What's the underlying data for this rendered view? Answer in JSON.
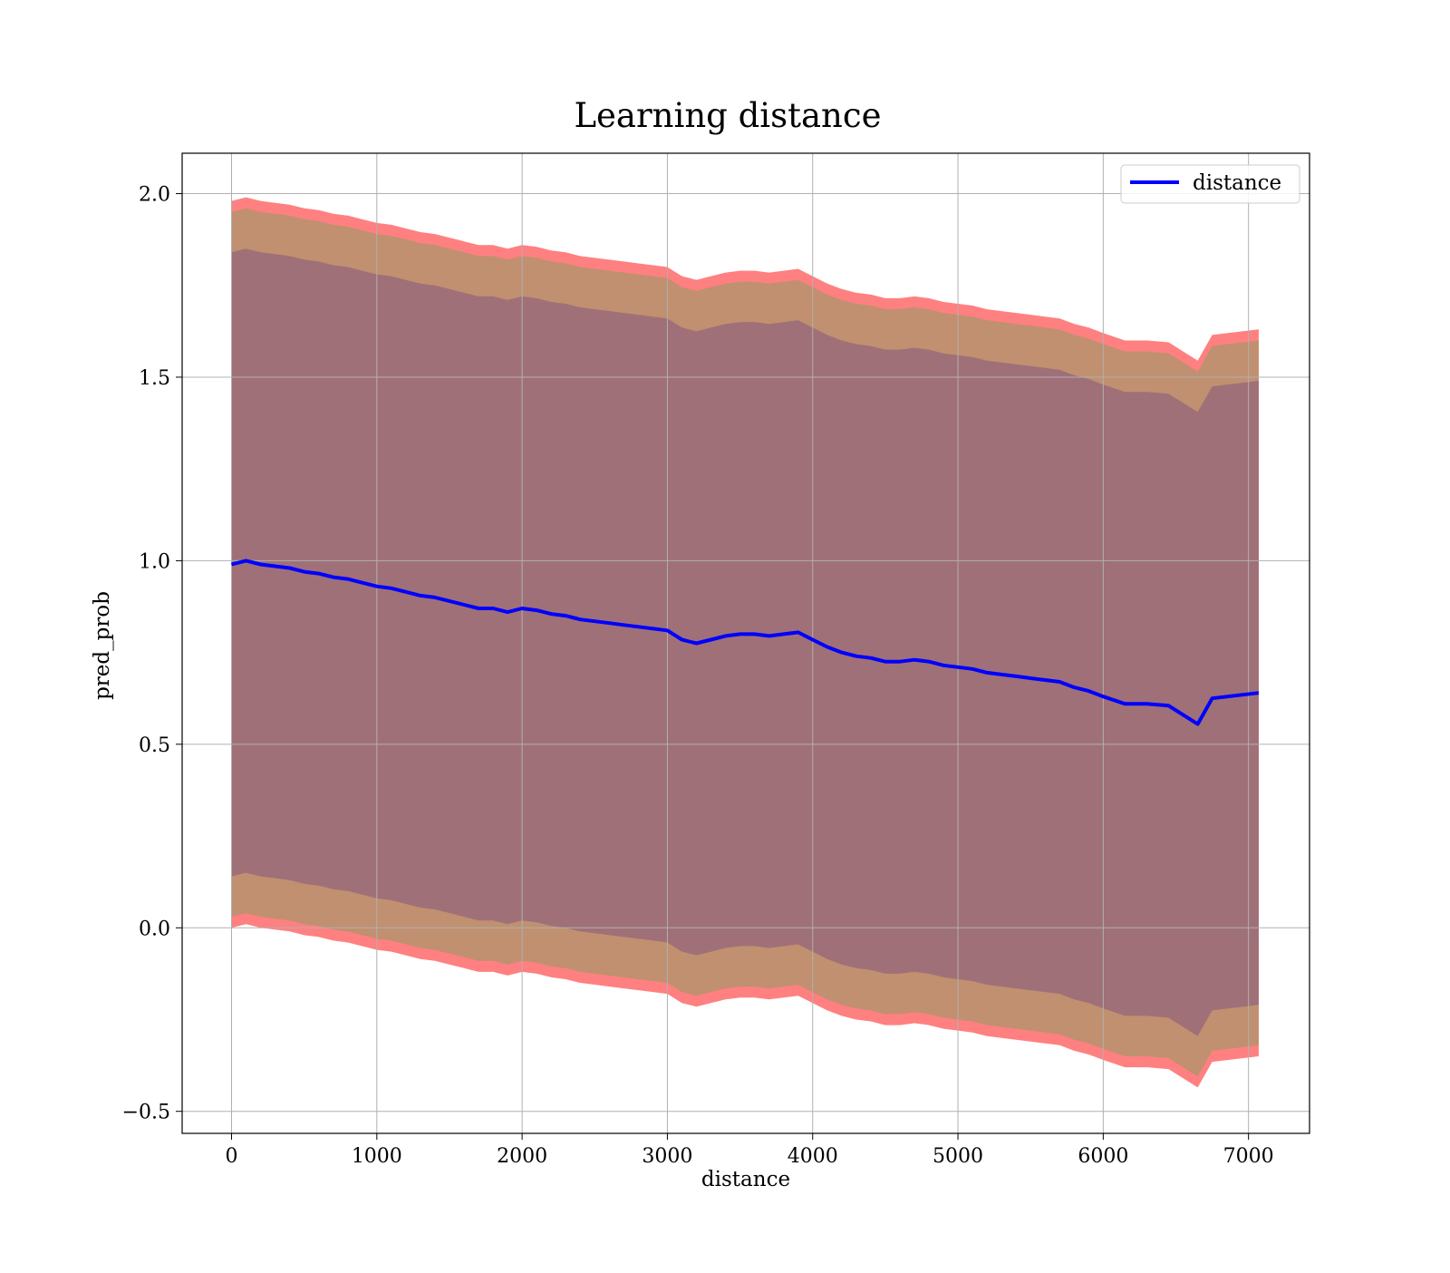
{
  "chart_data": {
    "type": "line",
    "title": "Learning distance",
    "xlabel": "distance",
    "ylabel": "pred_prob",
    "xlim": [
      -340,
      7420
    ],
    "ylim": [
      -0.56,
      2.11
    ],
    "xticks": [
      0,
      1000,
      2000,
      3000,
      4000,
      5000,
      6000,
      7000
    ],
    "xtick_labels": [
      "0",
      "1000",
      "2000",
      "3000",
      "4000",
      "5000",
      "6000",
      "7000"
    ],
    "yticks": [
      -0.5,
      0.0,
      0.5,
      1.0,
      1.5,
      2.0
    ],
    "ytick_labels": [
      "−0.5",
      "0.0",
      "0.5",
      "1.0",
      "1.5",
      "2.0"
    ],
    "grid": true,
    "legend": {
      "position": "top-right",
      "entries": [
        "distance"
      ]
    },
    "series": [
      {
        "name": "distance",
        "color": "#0000ff",
        "x": [
          0,
          100,
          200,
          300,
          400,
          500,
          600,
          700,
          800,
          900,
          1000,
          1100,
          1200,
          1300,
          1400,
          1500,
          1600,
          1700,
          1800,
          1900,
          2000,
          2100,
          2200,
          2300,
          2400,
          2500,
          2600,
          2700,
          2800,
          2900,
          3000,
          3100,
          3200,
          3300,
          3400,
          3500,
          3600,
          3700,
          3800,
          3900,
          4000,
          4100,
          4200,
          4300,
          4400,
          4500,
          4600,
          4700,
          4800,
          4900,
          5000,
          5100,
          5200,
          5300,
          5400,
          5500,
          5600,
          5700,
          5800,
          5900,
          6000,
          6150,
          6300,
          6450,
          6650,
          6750,
          7070
        ],
        "y": [
          0.99,
          1.0,
          0.99,
          0.985,
          0.98,
          0.97,
          0.965,
          0.955,
          0.95,
          0.94,
          0.93,
          0.925,
          0.915,
          0.905,
          0.9,
          0.89,
          0.88,
          0.87,
          0.87,
          0.86,
          0.87,
          0.865,
          0.855,
          0.85,
          0.84,
          0.835,
          0.83,
          0.825,
          0.82,
          0.815,
          0.81,
          0.785,
          0.775,
          0.785,
          0.795,
          0.8,
          0.8,
          0.795,
          0.8,
          0.805,
          0.785,
          0.765,
          0.75,
          0.74,
          0.735,
          0.725,
          0.725,
          0.73,
          0.725,
          0.715,
          0.71,
          0.705,
          0.695,
          0.69,
          0.685,
          0.68,
          0.675,
          0.67,
          0.655,
          0.645,
          0.63,
          0.61,
          0.61,
          0.605,
          0.555,
          0.625,
          0.64
        ]
      }
    ],
    "bands": [
      {
        "label": "",
        "color": "#ff8080",
        "offset_upper": 0.99,
        "offset_lower": 0.99
      },
      {
        "label": "",
        "color": "#c09070",
        "offset_upper": 0.96,
        "offset_lower": 0.96
      },
      {
        "label": "",
        "color": "#a07078",
        "offset_upper": 0.85,
        "offset_lower": 0.85
      }
    ]
  }
}
